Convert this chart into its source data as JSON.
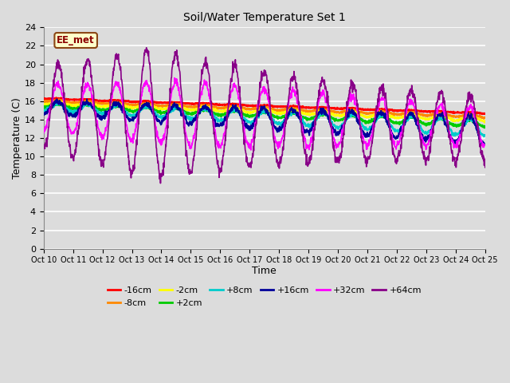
{
  "title": "Soil/Water Temperature Set 1",
  "xlabel": "Time",
  "ylabel": "Temperature (C)",
  "ylim": [
    0,
    24
  ],
  "background_color": "#dcdcdc",
  "grid_color": "#ffffff",
  "annotation_text": "EE_met",
  "annotation_bg": "#ffffcc",
  "annotation_border": "#8b4513",
  "series": [
    {
      "label": "-16cm",
      "color": "#ff0000"
    },
    {
      "label": "-8cm",
      "color": "#ff8800"
    },
    {
      "label": "-2cm",
      "color": "#ffff00"
    },
    {
      "label": "+2cm",
      "color": "#00cc00"
    },
    {
      "label": "+8cm",
      "color": "#00cccc"
    },
    {
      "label": "+16cm",
      "color": "#000099"
    },
    {
      "label": "+32cm",
      "color": "#ff00ff"
    },
    {
      "label": "+64cm",
      "color": "#880088"
    }
  ],
  "xtick_labels": [
    "Oct 10",
    "Oct 11",
    "Oct 12",
    "Oct 13",
    "Oct 14",
    "Oct 15",
    "Oct 16",
    "Oct 17",
    "Oct 18",
    "Oct 19",
    "Oct 20",
    "Oct 21",
    "Oct 22",
    "Oct 23",
    "Oct 24",
    "Oct 25"
  ]
}
